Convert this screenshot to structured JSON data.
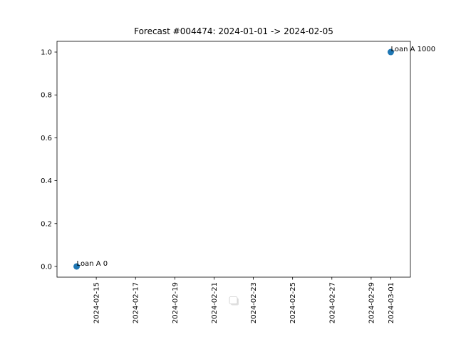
{
  "chart_data": {
    "type": "scatter",
    "title": "Forecast #004474: 2024-01-01 -> 2024-02-05",
    "xlabel": "",
    "ylabel": "",
    "x_axis_type": "date",
    "xlim": [
      "2024-02-13",
      "2024-03-02"
    ],
    "ylim": [
      -0.05,
      1.05
    ],
    "x_ticks": [
      "2024-02-15",
      "2024-02-17",
      "2024-02-19",
      "2024-02-21",
      "2024-02-23",
      "2024-02-25",
      "2024-02-27",
      "2024-02-29",
      "2024-03-01"
    ],
    "y_ticks": [
      "0.0",
      "0.2",
      "0.4",
      "0.6",
      "0.8",
      "1.0"
    ],
    "grid": false,
    "legend": "center (empty)",
    "series": [
      {
        "color": "#1f77b4",
        "points": [
          {
            "x": "2024-02-14",
            "y": 0,
            "label": "Loan A 0"
          },
          {
            "x": "2024-03-01",
            "y": 1,
            "label": "Loan A 1000"
          }
        ]
      }
    ]
  }
}
